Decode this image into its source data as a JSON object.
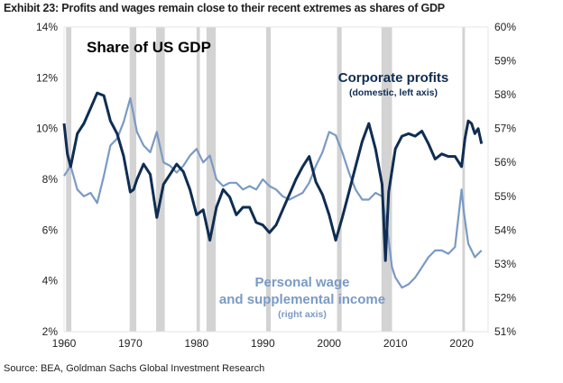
{
  "exhibit_title": "Exhibit 23: Profits and wages remain close to their recent extremes as shares of GDP",
  "source": "Source: BEA, Goldman Sachs Global Investment Research",
  "colors": {
    "profits": "#0f2d52",
    "wages": "#7a9ac4",
    "recession": "#d3d3d3"
  },
  "chart_data": {
    "type": "line",
    "title": "Share of US GDP",
    "xlim": [
      1960,
      2024
    ],
    "x_ticks": [
      "1960",
      "1970",
      "1980",
      "1990",
      "2000",
      "2010",
      "2020"
    ],
    "y_left": {
      "ylim": [
        2,
        14
      ],
      "ticks": [
        "2%",
        "4%",
        "6%",
        "8%",
        "10%",
        "12%",
        "14%"
      ]
    },
    "y_right": {
      "ylim": [
        51,
        60
      ],
      "ticks": [
        "51%",
        "52%",
        "53%",
        "54%",
        "55%",
        "56%",
        "57%",
        "58%",
        "59%",
        "60%"
      ]
    },
    "recessions": [
      [
        1960.3,
        1961.1
      ],
      [
        1969.9,
        1970.9
      ],
      [
        1973.9,
        1975.2
      ],
      [
        1980.0,
        1980.5
      ],
      [
        1981.5,
        1982.9
      ],
      [
        1990.5,
        1991.2
      ],
      [
        2001.2,
        2001.9
      ],
      [
        2007.9,
        2009.5
      ],
      [
        2020.1,
        2020.5
      ]
    ],
    "series": [
      {
        "name": "Corporate profits",
        "sublabel": "(domestic, left axis)",
        "axis": "left",
        "x": [
          1960,
          1960.5,
          1961,
          1962,
          1963,
          1964,
          1965,
          1966,
          1967,
          1968,
          1969,
          1970,
          1970.5,
          1971,
          1972,
          1973,
          1974,
          1975,
          1976,
          1977,
          1978,
          1979,
          1980,
          1981,
          1982,
          1983,
          1984,
          1985,
          1986,
          1987,
          1988,
          1989,
          1990,
          1991,
          1992,
          1993,
          1994,
          1995,
          1996,
          1997,
          1998,
          1999,
          2000,
          2001,
          2002,
          2003,
          2004,
          2005,
          2006,
          2007,
          2008,
          2008.5,
          2009,
          2010,
          2011,
          2012,
          2013,
          2014,
          2015,
          2016,
          2017,
          2018,
          2019,
          2020,
          2020.5,
          2021,
          2021.5,
          2022,
          2022.5,
          2023
        ],
        "values": [
          10.2,
          9.0,
          8.5,
          9.8,
          10.2,
          10.8,
          11.4,
          11.3,
          10.3,
          9.8,
          8.9,
          7.5,
          7.6,
          8.0,
          8.6,
          8.2,
          6.5,
          7.8,
          8.2,
          8.6,
          8.3,
          7.6,
          6.6,
          6.8,
          5.6,
          6.9,
          7.6,
          7.3,
          6.6,
          6.9,
          6.9,
          6.3,
          6.2,
          5.9,
          6.2,
          6.8,
          7.4,
          8.0,
          8.5,
          8.9,
          7.9,
          7.4,
          6.6,
          5.6,
          6.5,
          7.5,
          8.5,
          9.5,
          10.2,
          9.2,
          7.8,
          4.8,
          7.5,
          9.2,
          9.7,
          9.8,
          9.7,
          9.9,
          9.4,
          8.8,
          9.0,
          8.9,
          8.9,
          8.5,
          9.6,
          10.3,
          10.2,
          9.8,
          10.0,
          9.4
        ]
      },
      {
        "name": "Personal wage and supplemental income",
        "sublabel": "(right axis)",
        "axis": "right",
        "x": [
          1960,
          1961,
          1962,
          1963,
          1964,
          1965,
          1966,
          1967,
          1968,
          1969,
          1970,
          1971,
          1972,
          1973,
          1974,
          1975,
          1976,
          1977,
          1978,
          1979,
          1980,
          1981,
          1982,
          1983,
          1984,
          1985,
          1986,
          1987,
          1988,
          1989,
          1990,
          1991,
          1992,
          1993,
          1994,
          1995,
          1996,
          1997,
          1998,
          1999,
          2000,
          2001,
          2002,
          2003,
          2004,
          2005,
          2006,
          2007,
          2008,
          2009,
          2009.5,
          2010,
          2011,
          2012,
          2013,
          2014,
          2015,
          2016,
          2017,
          2018,
          2019,
          2020,
          2020.3,
          2021,
          2022,
          2023
        ],
        "values": [
          55.6,
          55.9,
          55.2,
          55.0,
          55.1,
          54.8,
          55.6,
          56.5,
          56.7,
          57.2,
          57.9,
          56.9,
          56.5,
          56.3,
          56.9,
          56.0,
          55.9,
          55.7,
          55.9,
          56.2,
          56.4,
          56.0,
          56.2,
          55.5,
          55.3,
          55.4,
          55.4,
          55.2,
          55.3,
          55.2,
          55.5,
          55.3,
          55.2,
          55.0,
          54.9,
          55.0,
          55.1,
          55.4,
          55.9,
          56.3,
          56.9,
          56.8,
          56.3,
          55.7,
          55.2,
          54.9,
          54.9,
          55.1,
          55.0,
          53.7,
          52.9,
          52.6,
          52.3,
          52.4,
          52.6,
          52.9,
          53.2,
          53.4,
          53.4,
          53.3,
          53.5,
          55.2,
          54.6,
          53.6,
          53.2,
          53.4
        ]
      }
    ],
    "annotations": {
      "profits_label": "Corporate profits",
      "profits_sublabel": "(domestic, left axis)",
      "wages_label_line1": "Personal wage",
      "wages_label_line2": "and supplemental income",
      "wages_sublabel": "(right axis)"
    },
    "grid": false,
    "legend": "inline labels"
  }
}
